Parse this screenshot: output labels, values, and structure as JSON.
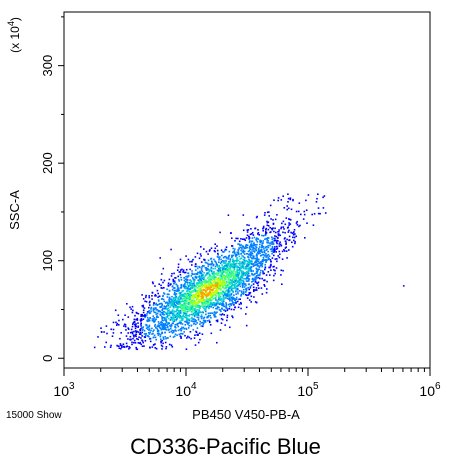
{
  "chart_data": {
    "type": "scatter",
    "subtype": "flow-cytometry density dot plot",
    "caption": "CD336-Pacific Blue",
    "xlabel": "PB450 V450-PB-A",
    "ylabel": "SSC-A",
    "y_multiplier_label": "(x 10",
    "y_multiplier_exp": "4",
    "y_multiplier_close": ")",
    "x_scale": "log",
    "xlim": [
      1000,
      1000000
    ],
    "x_ticks": [
      {
        "base": "10",
        "exp": "3",
        "value": 1000
      },
      {
        "base": "10",
        "exp": "4",
        "value": 10000
      },
      {
        "base": "10",
        "exp": "5",
        "value": 100000
      },
      {
        "base": "10",
        "exp": "6",
        "value": 1000000
      }
    ],
    "y_scale": "linear",
    "ylim": [
      -10,
      355
    ],
    "y_ticks": [
      {
        "label": "0",
        "value": 0
      },
      {
        "label": "100",
        "value": 100
      },
      {
        "label": "200",
        "value": 200
      },
      {
        "label": "300",
        "value": 300
      }
    ],
    "events_label": "15000 Show",
    "event_count": 15000,
    "population": {
      "center_x": 15000,
      "center_y": 70,
      "x_range": [
        1500,
        250000
      ],
      "y_range": [
        10,
        170
      ],
      "outlier": {
        "x": 600000,
        "y": 75
      }
    },
    "density_colors": [
      "#0000ff",
      "#0080ff",
      "#00d0d0",
      "#40ff80",
      "#c0ff00",
      "#ffa000"
    ],
    "grid": false,
    "legend": "none"
  }
}
